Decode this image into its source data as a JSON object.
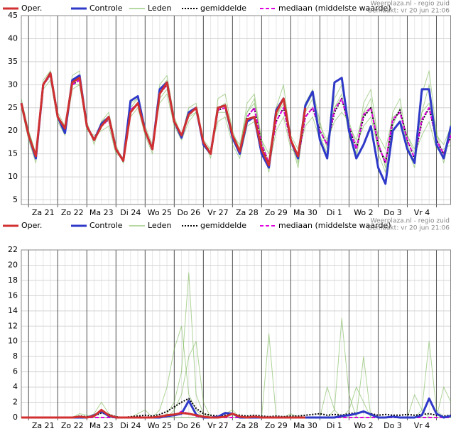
{
  "chart_data": [
    {
      "type": "line",
      "source": "Weerplaza.nl - regio zuid",
      "made": "Gemaakt: vr 20 jun 21:06",
      "categories": [
        null,
        null,
        null,
        "Za 21",
        null,
        null,
        null,
        "Zo 22",
        null,
        null,
        null,
        "Ma 23",
        null,
        null,
        null,
        "Di 24",
        null,
        null,
        null,
        "Wo 25",
        null,
        null,
        null,
        "Do 26",
        null,
        null,
        null,
        "Vr 27",
        null,
        null,
        null,
        "Za 28",
        null,
        null,
        null,
        "Zo 29",
        null,
        null,
        null,
        "Ma 30",
        null,
        null,
        null,
        "Di 1",
        null,
        null,
        null,
        "Wo 2",
        null,
        null,
        null,
        "Do 3",
        null,
        null,
        null,
        "Vr 4",
        null,
        null,
        null,
        null
      ],
      "ylim": [
        4,
        45
      ],
      "yticks": [
        5,
        10,
        15,
        20,
        25,
        30,
        35,
        40,
        45
      ],
      "grid": true,
      "members": {
        "name": "Leden",
        "color": "#6cb043",
        "runs": [
          [
            27,
            20,
            15,
            31,
            33,
            24,
            21,
            32,
            33,
            22,
            17,
            22,
            24,
            17,
            13,
            23,
            25,
            19,
            15,
            30,
            32,
            23,
            19,
            25,
            26,
            18,
            14,
            27,
            28,
            20,
            16,
            26,
            28,
            18,
            13,
            25,
            30,
            18,
            13,
            26,
            29,
            22,
            16,
            27,
            30,
            20,
            15,
            26,
            29,
            18,
            12,
            24,
            27,
            17,
            13,
            28,
            33,
            20,
            14,
            22
          ],
          [
            25,
            18,
            13,
            29,
            31,
            22,
            19,
            29,
            30,
            20,
            19,
            20,
            21,
            15,
            14,
            26,
            27,
            21,
            17,
            26,
            28,
            21,
            18,
            22,
            24,
            17,
            16,
            22,
            23,
            17,
            14,
            21,
            22,
            15,
            12,
            20,
            23,
            16,
            15,
            21,
            23,
            18,
            18,
            22,
            24,
            22,
            17,
            21,
            23,
            16,
            14,
            20,
            22,
            19,
            15,
            19,
            22,
            16,
            16,
            17
          ],
          [
            26,
            19,
            14,
            30,
            33,
            23,
            20,
            31,
            32,
            21,
            18,
            22,
            23,
            16,
            13,
            25,
            27,
            20,
            16,
            29,
            31,
            22,
            19,
            24,
            25,
            17,
            15,
            25,
            26,
            19,
            15,
            24,
            27,
            17,
            11,
            23,
            27,
            18,
            12,
            24,
            27,
            19,
            15,
            25,
            28,
            19,
            14,
            24,
            27,
            15,
            11,
            21,
            25,
            16,
            12,
            24,
            30,
            19,
            13,
            20
          ],
          [
            26,
            20,
            15,
            30,
            32,
            23,
            21,
            30,
            30,
            21,
            18,
            21,
            23,
            16,
            14,
            24,
            26,
            20,
            16,
            27,
            29,
            22,
            19,
            23,
            24,
            18,
            16,
            24,
            24,
            19,
            17,
            24,
            26,
            18,
            15,
            23,
            26,
            19,
            16,
            25,
            28,
            21,
            18,
            25,
            27,
            21,
            18,
            24,
            25,
            19,
            16,
            23,
            24,
            19,
            16,
            24,
            26,
            19,
            17,
            21
          ]
        ]
      },
      "series": [
        {
          "name": "gemiddelde",
          "color": "#000000",
          "line": "dotted",
          "values": [
            26,
            19,
            14.5,
            30,
            32,
            23,
            20.5,
            30,
            31,
            21,
            18,
            21,
            22.5,
            16,
            13.5,
            24.5,
            26,
            20,
            16,
            28,
            30,
            22,
            18.5,
            23.5,
            25,
            17.5,
            15,
            24.5,
            25,
            18.5,
            15.5,
            23,
            25,
            17,
            13,
            22,
            25,
            17.5,
            14,
            23,
            25,
            20,
            17,
            24,
            27,
            21,
            16,
            23,
            25,
            17,
            13,
            22,
            24.5,
            18,
            14,
            22,
            25,
            18,
            15,
            19
          ]
        },
        {
          "name": "mediaan (middelste waarde)",
          "color": "#e000e0",
          "line": "dashed",
          "values": [
            26,
            19,
            14.5,
            30,
            32,
            23,
            20.5,
            30,
            31,
            21,
            18,
            21,
            22.5,
            16,
            13.5,
            24.5,
            26,
            20,
            16,
            28,
            30,
            22,
            18.5,
            23.5,
            25,
            17.5,
            15,
            24.5,
            25,
            18.5,
            15.5,
            23,
            25,
            17,
            13,
            22,
            25,
            17.5,
            14,
            23,
            25,
            20,
            17,
            24.5,
            27,
            21,
            16,
            23.5,
            25,
            17,
            13,
            22.5,
            24,
            18,
            14,
            22.5,
            25,
            18,
            15,
            19
          ]
        },
        {
          "name": "Controle",
          "color": "#2f39c8",
          "line": "solid",
          "values": [
            26,
            19,
            14,
            30,
            32.5,
            23,
            19.5,
            31,
            32,
            21,
            18,
            21.5,
            23,
            16,
            13.5,
            26.5,
            27.5,
            20,
            16,
            29,
            30.5,
            22,
            18.5,
            24,
            25,
            17,
            15,
            25,
            25.5,
            18.5,
            15,
            22,
            23,
            15,
            12,
            24.5,
            27,
            18,
            14,
            25.5,
            28.5,
            18,
            14,
            30.5,
            31.5,
            20,
            14,
            17,
            21,
            12,
            8.5,
            20,
            22,
            16,
            13,
            29,
            29,
            17,
            14,
            21
          ]
        },
        {
          "name": "Oper.",
          "color": "#d03030",
          "line": "solid",
          "values": [
            26,
            19,
            14.5,
            30,
            32.5,
            23,
            20.5,
            30.5,
            31.5,
            21,
            18,
            21,
            23,
            16,
            13.5,
            24,
            26,
            20,
            16,
            28,
            30.5,
            22,
            19,
            23.5,
            25,
            17.5,
            15,
            25,
            25.5,
            19,
            15.5,
            22.5,
            23,
            16,
            12.5,
            24,
            27,
            18,
            14.5,
            25,
            null,
            null,
            null,
            null,
            null,
            null,
            null,
            null,
            null,
            null,
            null,
            null,
            null,
            null,
            null,
            null,
            null,
            null,
            null,
            null
          ]
        }
      ]
    },
    {
      "type": "line",
      "source": "Weerplaza.nl - regio zuid",
      "made": "Gemaakt: vr 20 jun 21:06",
      "categories": [
        null,
        null,
        null,
        "Za 21",
        null,
        null,
        null,
        "Zo 22",
        null,
        null,
        null,
        "Ma 23",
        null,
        null,
        null,
        "Di 24",
        null,
        null,
        null,
        "Wo 25",
        null,
        null,
        null,
        "Do 26",
        null,
        null,
        null,
        "Vr 27",
        null,
        null,
        null,
        "Za 28",
        null,
        null,
        null,
        "Zo 29",
        null,
        null,
        null,
        "Ma 30",
        null,
        null,
        null,
        "Di 1",
        null,
        null,
        null,
        "Wo 2",
        null,
        null,
        null,
        "Do 3",
        null,
        null,
        null,
        "Vr 4",
        null,
        null,
        null,
        null
      ],
      "ylim": [
        0,
        22
      ],
      "yticks": [
        0,
        2,
        4,
        6,
        8,
        10,
        12,
        14,
        16,
        18,
        20,
        22
      ],
      "grid": true,
      "members": {
        "name": "Leden",
        "color": "#6cb043",
        "runs": [
          [
            0,
            0,
            0,
            0,
            0,
            0,
            0,
            0,
            0,
            0,
            0.5,
            2,
            0.5,
            0,
            0,
            0,
            0,
            0,
            0,
            0,
            0.5,
            2,
            6,
            19,
            3,
            0.5,
            0,
            0,
            0.5,
            1,
            0,
            0,
            0,
            0,
            0,
            0,
            0,
            0.5,
            0,
            0,
            0,
            0,
            0,
            0,
            0,
            1,
            4,
            2,
            0,
            0,
            0,
            0,
            0,
            0,
            0,
            0,
            0,
            0,
            0,
            0
          ],
          [
            0,
            0,
            0,
            0,
            0,
            0,
            0,
            0,
            0.5,
            0.3,
            0,
            0,
            0,
            0,
            0,
            0,
            0,
            0,
            0,
            0,
            0,
            1,
            3,
            8,
            10,
            2,
            0,
            0,
            0,
            0,
            0,
            0,
            0,
            0,
            0,
            0,
            0,
            0,
            0,
            0,
            0,
            0,
            0,
            1,
            13,
            3,
            0,
            0,
            0,
            0,
            0,
            0,
            0,
            0,
            0,
            0,
            0,
            0,
            0,
            0
          ],
          [
            0,
            0,
            0,
            0,
            0,
            0,
            0,
            0,
            0,
            0,
            0,
            0,
            0,
            0,
            0,
            0,
            0.5,
            1,
            0,
            1,
            4,
            9,
            12,
            3,
            1,
            0,
            0,
            0,
            0,
            0,
            0,
            0,
            0,
            0,
            11,
            0,
            0,
            0,
            0,
            0,
            0,
            0,
            0,
            0,
            0,
            0,
            0,
            0,
            0,
            0,
            0,
            0,
            0,
            0,
            0,
            1,
            10,
            1,
            0,
            0
          ],
          [
            0,
            0,
            0,
            0,
            0,
            0,
            0,
            0,
            0,
            0,
            0,
            0,
            0,
            0,
            0,
            0,
            0,
            0,
            0,
            0,
            0,
            0,
            0,
            0,
            0,
            0,
            0,
            0,
            0,
            0,
            0,
            0,
            0,
            0,
            0,
            0,
            0,
            0,
            0,
            0,
            0,
            0,
            4,
            1,
            0,
            0,
            0,
            8,
            0,
            0,
            0,
            0,
            0,
            0,
            3,
            1,
            0,
            0,
            4,
            2
          ]
        ]
      },
      "series": [
        {
          "name": "gemiddelde",
          "color": "#000000",
          "line": "dotted",
          "values": [
            0,
            0,
            0,
            0,
            0,
            0,
            0,
            0,
            0.2,
            0.1,
            0.2,
            0.6,
            0.4,
            0.1,
            0,
            0.1,
            0.2,
            0.3,
            0.2,
            0.4,
            0.8,
            1.4,
            2,
            2.5,
            1.2,
            0.5,
            0.3,
            0.2,
            0.3,
            0.4,
            0.3,
            0.2,
            0.3,
            0.2,
            0.1,
            0.2,
            0.1,
            0.2,
            0.2,
            0.3,
            0.4,
            0.5,
            0.3,
            0.4,
            0.3,
            0.5,
            0.6,
            0.7,
            0.5,
            0.3,
            0.4,
            0.3,
            0.3,
            0.4,
            0.3,
            0.4,
            0.5,
            0.3,
            0.2,
            0.3
          ]
        },
        {
          "name": "mediaan (middelste waarde)",
          "color": "#e000e0",
          "line": "dashed",
          "values": [
            0,
            0,
            0,
            0,
            0,
            0,
            0,
            0,
            0,
            0,
            0,
            0,
            0,
            0,
            0,
            0,
            0,
            0,
            0,
            0,
            0.1,
            0.3,
            0.8,
            0.5,
            0.2,
            0,
            0,
            0,
            0,
            0,
            0,
            0,
            0,
            0,
            0,
            0,
            0,
            0,
            0,
            0,
            0,
            0,
            0,
            0,
            0,
            0,
            0,
            0,
            0,
            0,
            0,
            0,
            0,
            0,
            0,
            0,
            0,
            0,
            0,
            0
          ]
        },
        {
          "name": "Controle",
          "color": "#2f39c8",
          "line": "solid",
          "values": [
            0,
            0,
            0,
            0,
            0,
            0,
            0,
            0,
            0,
            0,
            0.3,
            0.8,
            0.2,
            0,
            0,
            0,
            0,
            0,
            0,
            0,
            0.2,
            0.3,
            0.5,
            2.2,
            0.4,
            0,
            0,
            0.1,
            0.6,
            0.5,
            0,
            0,
            0,
            0,
            0,
            0,
            0,
            0,
            0,
            0,
            0,
            0,
            0,
            0,
            0.2,
            0.3,
            0.5,
            0.8,
            0.4,
            0,
            0,
            0.1,
            0,
            0,
            0,
            0.3,
            2.5,
            0.5,
            0,
            0.2
          ]
        },
        {
          "name": "Oper.",
          "color": "#d03030",
          "line": "solid",
          "values": [
            0,
            0,
            0,
            0,
            0,
            0,
            0,
            0,
            0.1,
            0,
            0.2,
            1,
            0.3,
            0,
            0,
            0,
            0,
            0,
            0,
            0.1,
            0.3,
            0.4,
            0.6,
            0.5,
            0.3,
            0.1,
            0,
            0,
            0.1,
            0.5,
            0.1,
            0,
            0.1,
            0,
            0,
            0,
            0,
            0,
            0,
            0,
            null,
            null,
            null,
            null,
            null,
            null,
            null,
            null,
            null,
            null,
            null,
            null,
            null,
            null,
            null,
            null,
            null,
            null,
            null,
            null
          ]
        }
      ]
    }
  ]
}
